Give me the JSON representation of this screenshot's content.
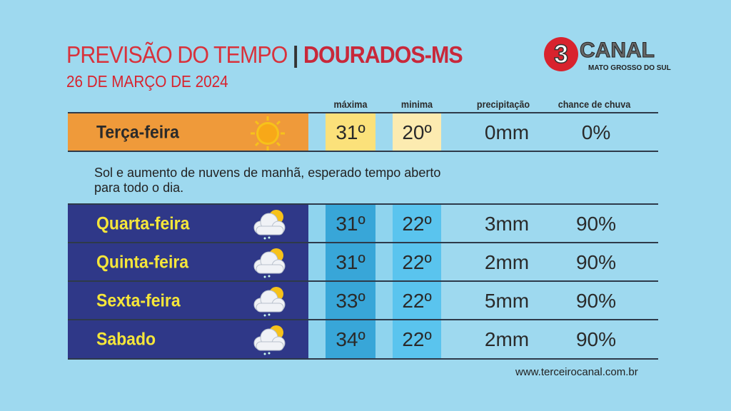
{
  "header": {
    "title_light": "PREVISÃO DO TEMPO",
    "title_sep": "|",
    "title_bold": "DOURADOS-MS",
    "date": "26 DE MARÇO DE 2024"
  },
  "logo": {
    "number": "3",
    "name": "CANAL",
    "subtitle": "MATO GROSSO DO SUL"
  },
  "columns": {
    "max": "máxima",
    "min": "minima",
    "precip": "precipitação",
    "chance": "chance de chuva"
  },
  "today": {
    "day": "Terça-feira",
    "icon": "sun-icon",
    "max": "31º",
    "min": "20º",
    "precip": "0mm",
    "chance": "0%"
  },
  "description": "Sol e aumento de nuvens de manhã, esperado tempo aberto para todo o dia.",
  "days": [
    {
      "day": "Quarta-feira",
      "icon": "partly-cloudy-rain-icon",
      "max": "31º",
      "min": "22º",
      "precip": "3mm",
      "chance": "90%"
    },
    {
      "day": "Quinta-feira",
      "icon": "partly-cloudy-rain-icon",
      "max": "31º",
      "min": "22º",
      "precip": "2mm",
      "chance": "90%"
    },
    {
      "day": "Sexta-feira",
      "icon": "partly-cloudy-rain-icon",
      "max": "33º",
      "min": "22º",
      "precip": "5mm",
      "chance": "90%"
    },
    {
      "day": "Sabado",
      "icon": "partly-cloudy-rain-icon",
      "max": "34º",
      "min": "22º",
      "precip": "2mm",
      "chance": "90%"
    }
  ],
  "footer": {
    "url": "www.terceirocanal.com.br"
  },
  "colors": {
    "background": "#9ed9ef",
    "today": "#ef9a3a",
    "days": "#2f3888",
    "day_text": "#f5e63a",
    "title": "#d8323c"
  }
}
